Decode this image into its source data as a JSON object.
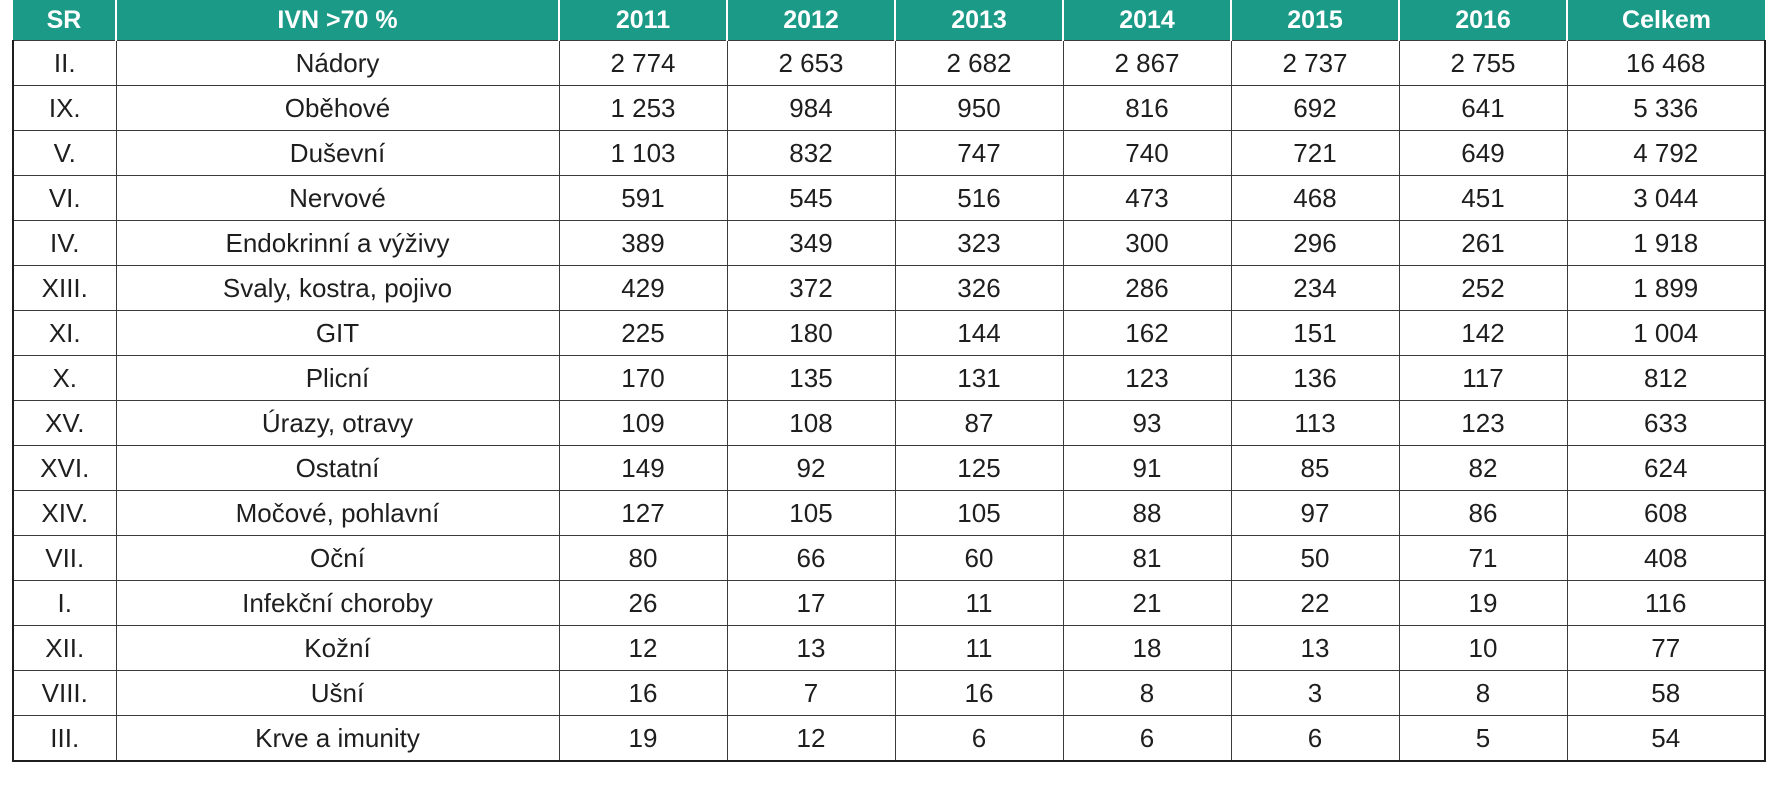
{
  "table": {
    "headers": [
      "SR",
      "IVN >70 %",
      "2011",
      "2012",
      "2013",
      "2014",
      "2015",
      "2016",
      "Celkem"
    ],
    "rows": [
      [
        "II.",
        "Nádory",
        "2 774",
        "2 653",
        "2 682",
        "2 867",
        "2 737",
        "2 755",
        "16 468"
      ],
      [
        "IX.",
        "Oběhové",
        "1 253",
        "984",
        "950",
        "816",
        "692",
        "641",
        "5 336"
      ],
      [
        "V.",
        "Duševní",
        "1 103",
        "832",
        "747",
        "740",
        "721",
        "649",
        "4 792"
      ],
      [
        "VI.",
        "Nervové",
        "591",
        "545",
        "516",
        "473",
        "468",
        "451",
        "3 044"
      ],
      [
        "IV.",
        "Endokrinní a výživy",
        "389",
        "349",
        "323",
        "300",
        "296",
        "261",
        "1 918"
      ],
      [
        "XIII.",
        "Svaly, kostra, pojivo",
        "429",
        "372",
        "326",
        "286",
        "234",
        "252",
        "1 899"
      ],
      [
        "XI.",
        "GIT",
        "225",
        "180",
        "144",
        "162",
        "151",
        "142",
        "1 004"
      ],
      [
        "X.",
        "Plicní",
        "170",
        "135",
        "131",
        "123",
        "136",
        "117",
        "812"
      ],
      [
        "XV.",
        "Úrazy, otravy",
        "109",
        "108",
        "87",
        "93",
        "113",
        "123",
        "633"
      ],
      [
        "XVI.",
        "Ostatní",
        "149",
        "92",
        "125",
        "91",
        "85",
        "82",
        "624"
      ],
      [
        "XIV.",
        "Močové, pohlavní",
        "127",
        "105",
        "105",
        "88",
        "97",
        "86",
        "608"
      ],
      [
        "VII.",
        "Oční",
        "80",
        "66",
        "60",
        "81",
        "50",
        "71",
        "408"
      ],
      [
        "I.",
        "Infekční choroby",
        "26",
        "17",
        "11",
        "21",
        "22",
        "19",
        "116"
      ],
      [
        "XII.",
        "Kožní",
        "12",
        "13",
        "11",
        "18",
        "13",
        "10",
        "77"
      ],
      [
        "VIII.",
        "Ušní",
        "16",
        "7",
        "16",
        "8",
        "3",
        "8",
        "58"
      ],
      [
        "III.",
        "Krve a imunity",
        "19",
        "12",
        "6",
        "6",
        "6",
        "5",
        "54"
      ]
    ]
  },
  "colors": {
    "header_background": "#1b9b87",
    "header_text": "#ffffff",
    "border": "#3a3a3a"
  }
}
